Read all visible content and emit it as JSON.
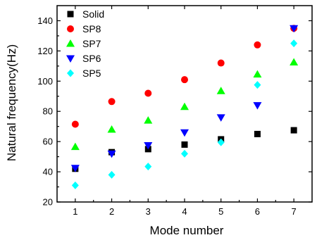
{
  "chart_data": {
    "type": "scatter",
    "title": "",
    "xlabel": "Mode number",
    "ylabel": "Natural frequency(Hz)",
    "xlim": [
      0.5,
      7.5
    ],
    "ylim": [
      20,
      150
    ],
    "x_ticks": [
      1,
      2,
      3,
      4,
      5,
      6,
      7
    ],
    "y_ticks": [
      20,
      40,
      60,
      80,
      100,
      120,
      140
    ],
    "grid": false,
    "legend_position": "top-left",
    "x": [
      1,
      2,
      3,
      4,
      5,
      6,
      7
    ],
    "series": [
      {
        "name": "Solid",
        "marker": "square",
        "color": "#000000",
        "values": [
          42,
          53,
          55,
          58,
          61.5,
          65,
          67.5
        ]
      },
      {
        "name": "SP8",
        "marker": "circle",
        "color": "#ff0000",
        "values": [
          71.5,
          86.5,
          92,
          101,
          112,
          124,
          135
        ]
      },
      {
        "name": "SP7",
        "marker": "triangle-up",
        "color": "#00ff00",
        "values": [
          56.5,
          68,
          74,
          83,
          93.5,
          104.5,
          112.5
        ]
      },
      {
        "name": "SP6",
        "marker": "triangle-down",
        "color": "#0000ff",
        "values": [
          42.5,
          52,
          57.5,
          66,
          76,
          84,
          135
        ]
      },
      {
        "name": "SP5",
        "marker": "diamond",
        "color": "#00ffff",
        "values": [
          31,
          38,
          43.5,
          52,
          59.5,
          97.5,
          125
        ]
      }
    ]
  }
}
